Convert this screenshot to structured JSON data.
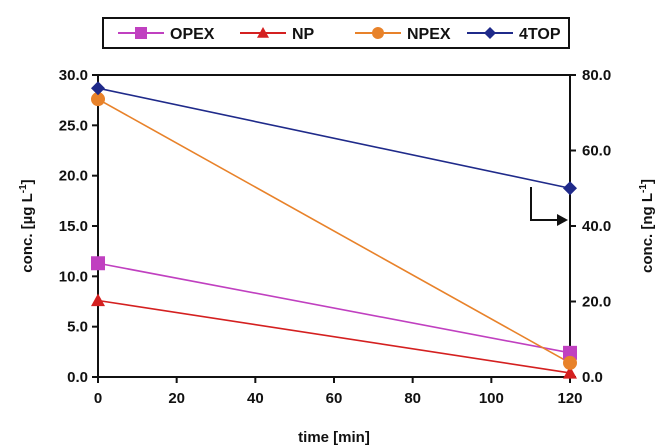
{
  "chart_data": {
    "type": "line",
    "xlabel": "time [min]",
    "ylabel_left": "conc. [µg L",
    "ylabel_left_sup": "-1",
    "ylabel_left_end": "]",
    "ylabel_right": "conc. [ng L",
    "ylabel_right_sup": "-1",
    "ylabel_right_end": "]",
    "xlim": [
      0,
      120
    ],
    "ylim_left": [
      0,
      30
    ],
    "ylim_right": [
      0,
      80
    ],
    "x_ticks": [
      "0",
      "20",
      "40",
      "60",
      "80",
      "100",
      "120"
    ],
    "y_left_ticks": [
      "0.0",
      "5.0",
      "10.0",
      "15.0",
      "20.0",
      "25.0",
      "30.0"
    ],
    "y_right_ticks": [
      "0.0",
      "20.0",
      "40.0",
      "60.0",
      "80.0"
    ],
    "grid": false,
    "legend_position": "top",
    "series": [
      {
        "name": "OPEX",
        "axis": "left",
        "color": "#c040c0",
        "marker": "square",
        "x": [
          0,
          120
        ],
        "y": [
          11.3,
          2.4
        ]
      },
      {
        "name": "NP",
        "axis": "left",
        "color": "#d42020",
        "marker": "triangle",
        "x": [
          0,
          120
        ],
        "y": [
          7.6,
          0.4
        ]
      },
      {
        "name": "NPEX",
        "axis": "left",
        "color": "#e8822a",
        "marker": "circle",
        "x": [
          0,
          120
        ],
        "y": [
          27.6,
          1.4
        ]
      },
      {
        "name": "4TOP",
        "axis": "right",
        "color": "#1f2a8a",
        "marker": "diamond",
        "x": [
          0,
          120
        ],
        "y": [
          76.5,
          50.0
        ]
      }
    ]
  }
}
